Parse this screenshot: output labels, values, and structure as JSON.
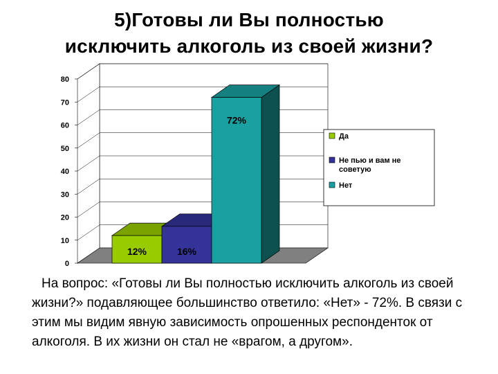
{
  "title_lines": [
    "5)Готовы ли Вы полностью",
    "исключить алкоголь из своей жизни?"
  ],
  "chart_data": {
    "type": "bar",
    "series": [
      {
        "name": "Да",
        "value": 12,
        "label": "12%",
        "color": "#99cc00"
      },
      {
        "name": "Не пью и вам не советую",
        "value": 16,
        "label": "16%",
        "color": "#333399"
      },
      {
        "name": "Нет",
        "value": 72,
        "label": "72%",
        "color": "#1aa0a0"
      }
    ],
    "ylim": [
      0,
      80
    ],
    "yticks": [
      "0",
      "10",
      "20",
      "30",
      "40",
      "50",
      "60",
      "70",
      "80"
    ],
    "grid": true,
    "legend": "right",
    "three_d": true
  },
  "body_text": "На вопрос: «Готовы ли Вы полностью исключить алкоголь из своей жизни?» подавляющее большинство ответило: «Нет» - 72%. В связи с этим мы видим явную зависимость опрошенных респонденток от алкоголя. В их жизни он стал не «врагом, а другом»."
}
